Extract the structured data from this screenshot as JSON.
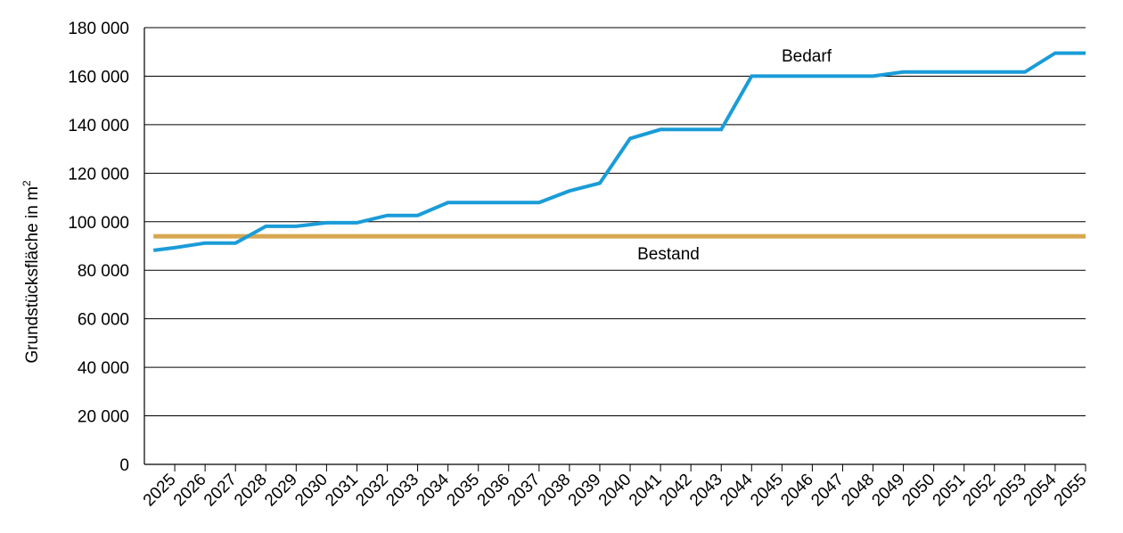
{
  "chart_data": {
    "type": "line",
    "title": "",
    "xlabel": "",
    "ylabel": "Grundstücksfläche in m",
    "ylabel_superscript": "2",
    "ylim": [
      0,
      180000
    ],
    "yticks": [
      0,
      20000,
      40000,
      60000,
      80000,
      100000,
      120000,
      140000,
      160000,
      180000
    ],
    "ytick_labels": [
      "0",
      "20 000",
      "40 000",
      "60 000",
      "80 000",
      "100 000",
      "120 000",
      "140 000",
      "160 000",
      "180 000"
    ],
    "grid": "horizontal",
    "categories": [
      "2025",
      "2026",
      "2027",
      "2028",
      "2029",
      "2030",
      "2031",
      "2032",
      "2033",
      "2034",
      "2035",
      "2036",
      "2037",
      "2038",
      "2039",
      "2040",
      "2041",
      "2042",
      "2043",
      "2044",
      "2045",
      "2046",
      "2047",
      "2048",
      "2049",
      "2050",
      "2051",
      "2052",
      "2053",
      "2054",
      "2055"
    ],
    "series": [
      {
        "name": "Bedarf",
        "color": "#1a9cd8",
        "x": [
          2024.3,
          2025,
          2026,
          2027,
          2028,
          2029,
          2030,
          2031,
          2032,
          2033,
          2034,
          2035,
          2036,
          2037,
          2038,
          2039,
          2040,
          2041,
          2042,
          2043,
          2044,
          2045,
          2046,
          2047,
          2048,
          2049,
          2050,
          2051,
          2052,
          2053,
          2054,
          2055
        ],
        "values": [
          88200,
          89300,
          91200,
          91200,
          98100,
          98100,
          99600,
          99600,
          102600,
          102600,
          107900,
          107900,
          107900,
          107900,
          112700,
          115900,
          134300,
          138000,
          138000,
          138000,
          160000,
          160000,
          160000,
          160000,
          160000,
          161700,
          161700,
          161700,
          161700,
          161700,
          169500,
          169500
        ]
      },
      {
        "name": "Bestand",
        "color": "#d9a750",
        "x": [
          2024.3,
          2055
        ],
        "values": [
          94000,
          94000
        ]
      }
    ]
  }
}
